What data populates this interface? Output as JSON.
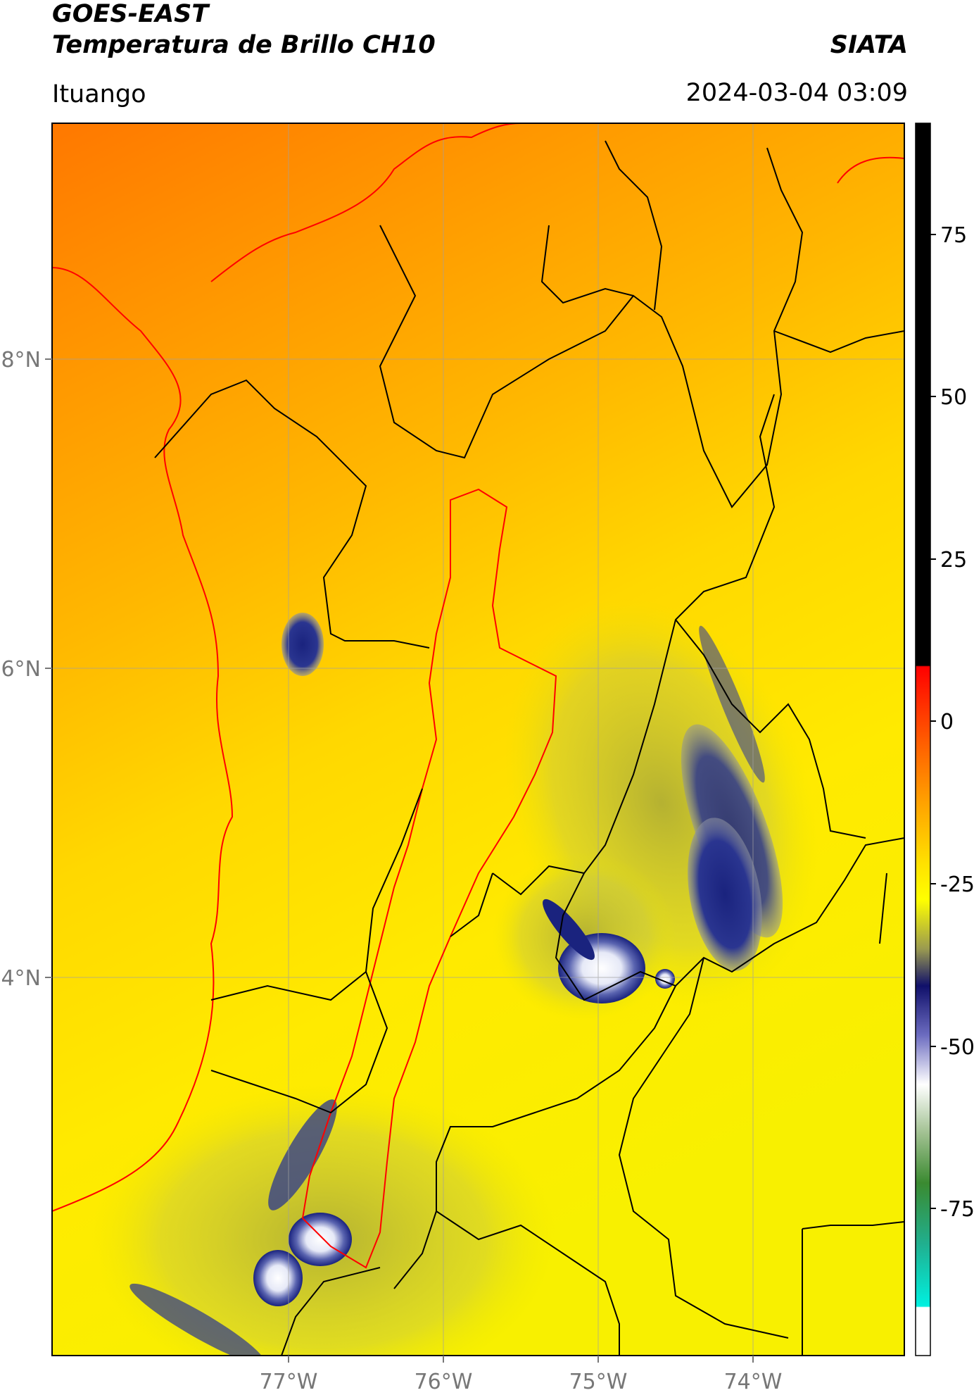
{
  "header": {
    "title_line1": "GOES-EAST",
    "title_line2": "Temperatura de Brillo CH10",
    "source": "SIATA",
    "location": "Ituango",
    "datetime": "2024-03-04 03:09"
  },
  "map": {
    "lon_ticks": [
      "77°W",
      "76°W",
      "75°W",
      "74°W"
    ],
    "lat_ticks": [
      "8°N",
      "6°N",
      "4°N"
    ]
  },
  "colorbar": {
    "ticks": [
      "75",
      "50",
      "25",
      "0",
      "-25",
      "-50",
      "-75"
    ]
  },
  "colors": {
    "warm_dark": "#ff7b00",
    "warm_mid": "#ffa500",
    "warm_yellow": "#ffe500",
    "cloud_olive": "#a8a832",
    "cloud_navy": "#1a237e",
    "cloud_white": "#f5f7ff",
    "political_border": "#000000",
    "coast_region": "#ff0000"
  }
}
